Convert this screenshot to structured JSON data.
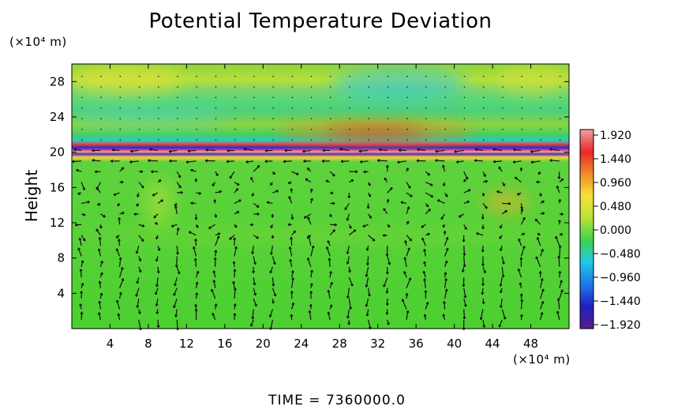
{
  "chart_data": {
    "type": "heatmap",
    "title": "Potential Temperature Deviation",
    "ylabel": "Height",
    "xlabel": "",
    "x_unit": "(×10⁴ m)",
    "y_unit": "(×10⁴ m)",
    "x_ticks": [
      "4",
      "8",
      "12",
      "16",
      "20",
      "24",
      "28",
      "32",
      "36",
      "40",
      "44",
      "48"
    ],
    "y_ticks": [
      "4",
      "8",
      "12",
      "16",
      "20",
      "24",
      "28"
    ],
    "xlim": [
      0,
      52
    ],
    "ylim": [
      0,
      30
    ],
    "colorbar": {
      "range": [
        -1.92,
        1.92
      ],
      "ticks": [
        "1.920",
        "1.440",
        "0.960",
        "0.480",
        "0.000",
        "−0.480",
        "−0.960",
        "−1.440",
        "−1.920"
      ],
      "colors": [
        "#5a1a8a",
        "#2020c0",
        "#1e78e8",
        "#22c8e8",
        "#3fd24a",
        "#b8e23a",
        "#f4e23a",
        "#f08a2a",
        "#e82828",
        "#f0a0a0"
      ]
    },
    "overlay": "wind vector field (arrows)",
    "caption": "TIME = 7360000.0"
  }
}
